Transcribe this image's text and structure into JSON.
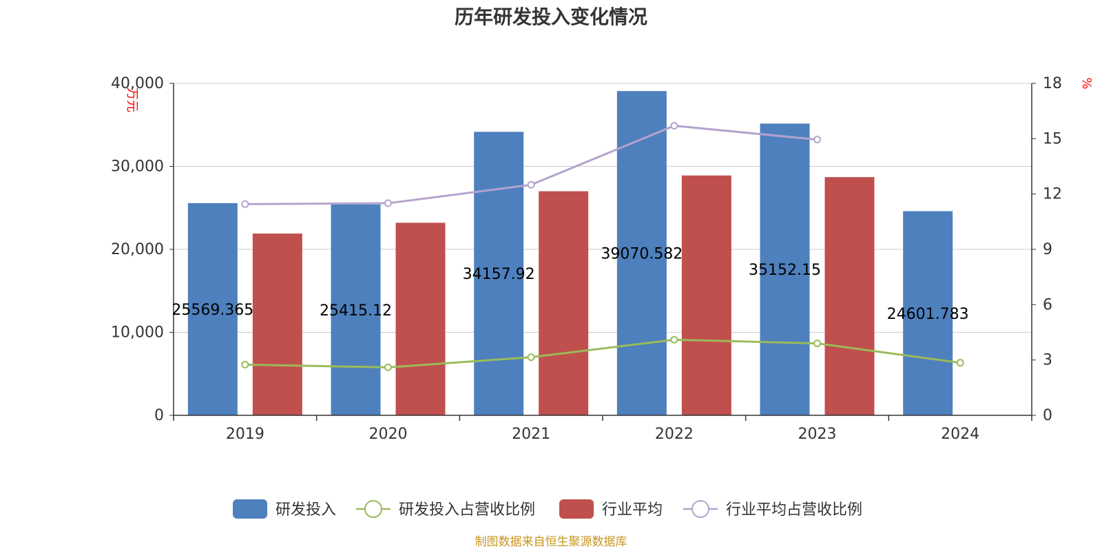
{
  "chart_data": {
    "type": "bar",
    "title": "历年研发投入变化情况",
    "categories": [
      "2019",
      "2020",
      "2021",
      "2022",
      "2023",
      "2024"
    ],
    "y_left": {
      "unit": "万元",
      "ylim": [
        0,
        40000
      ],
      "ticks": [
        "0",
        "10,000",
        "20,000",
        "30,000",
        "40,000"
      ]
    },
    "y_right": {
      "unit": "%",
      "ylim": [
        0,
        18
      ],
      "ticks": [
        "0",
        "3",
        "6",
        "9",
        "12",
        "15",
        "18"
      ]
    },
    "series": [
      {
        "name": "研发投入",
        "type": "bar",
        "axis": "left",
        "color": "#4e80bd",
        "values": [
          25569.365,
          25415.12,
          34157.92,
          39070.582,
          35152.15,
          24601.783
        ],
        "labels": [
          "25569.365",
          "25415.12",
          "34157.92",
          "39070.582",
          "35152.15",
          "24601.783"
        ]
      },
      {
        "name": "研发投入占营收比例",
        "type": "line",
        "axis": "right",
        "color": "#9bbb59",
        "values": [
          2.75,
          2.6,
          3.15,
          4.1,
          3.9,
          2.85
        ]
      },
      {
        "name": "行业平均",
        "type": "bar",
        "axis": "left",
        "color": "#c0504d",
        "values": [
          21900,
          23200,
          27000,
          28900,
          28700,
          null
        ]
      },
      {
        "name": "行业平均占营收比例",
        "type": "line",
        "axis": "right",
        "color": "#b3a3ce",
        "values": [
          11.45,
          11.5,
          12.5,
          15.7,
          14.95,
          null
        ]
      }
    ],
    "grid": true,
    "legend_position": "bottom"
  },
  "source": "制图数据来自恒生聚源数据库"
}
